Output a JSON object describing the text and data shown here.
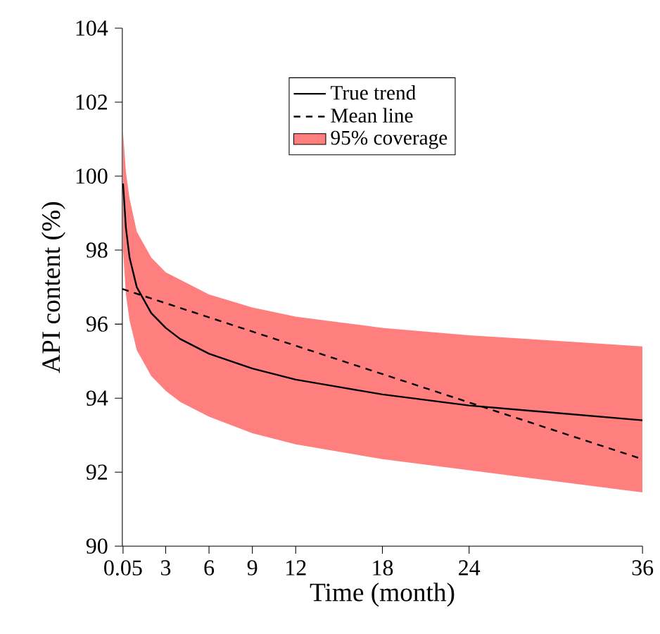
{
  "chart_data": {
    "type": "line",
    "xlabel": "Time (month)",
    "ylabel": "API content (%)",
    "xlim": [
      0,
      36
    ],
    "ylim": [
      90,
      104
    ],
    "xticks": [
      0.05,
      3,
      6,
      9,
      12,
      18,
      24,
      36
    ],
    "yticks": [
      90,
      92,
      94,
      96,
      98,
      100,
      102,
      104
    ],
    "legend": "top right",
    "series": [
      {
        "name": "True trend",
        "color": "#000000",
        "line_style": "solid",
        "x": [
          0.05,
          0.25,
          0.5,
          1,
          2,
          3,
          4,
          6,
          9,
          12,
          15,
          18,
          24,
          30,
          36
        ],
        "values": [
          99.8,
          98.6,
          97.8,
          97.0,
          96.3,
          95.9,
          95.6,
          95.2,
          94.8,
          94.5,
          94.3,
          94.1,
          93.8,
          93.6,
          93.4
        ]
      },
      {
        "name": "Mean line",
        "color": "#000000",
        "line_style": "dashed",
        "x": [
          0,
          36
        ],
        "values": [
          96.95,
          92.35
        ]
      },
      {
        "name": "95% coverage",
        "type": "area",
        "color": "#ff7f7f",
        "x": [
          0.05,
          0.25,
          0.5,
          1,
          2,
          3,
          4,
          6,
          9,
          12,
          15,
          18,
          24,
          30,
          36
        ],
        "lower": [
          98.0,
          96.8,
          96.1,
          95.3,
          94.6,
          94.2,
          93.9,
          93.5,
          93.05,
          92.75,
          92.55,
          92.35,
          92.05,
          91.75,
          91.45
        ],
        "upper": [
          101.2,
          100.1,
          99.4,
          98.5,
          97.8,
          97.4,
          97.2,
          96.8,
          96.45,
          96.2,
          96.05,
          95.9,
          95.7,
          95.55,
          95.4
        ],
        "values": [
          null,
          null,
          null,
          null,
          null,
          null,
          null,
          null,
          null,
          null,
          null,
          null,
          null,
          null,
          null
        ]
      }
    ]
  }
}
